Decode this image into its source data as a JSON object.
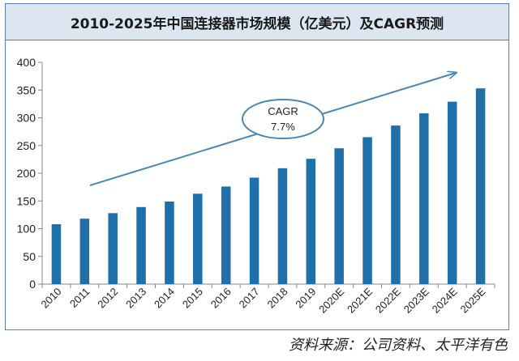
{
  "chart_data": {
    "type": "bar",
    "title": "2010-2025年中国连接器市场规模（亿美元）及CAGR预测",
    "categories": [
      "2010",
      "2011",
      "2012",
      "2013",
      "2014",
      "2015",
      "2016",
      "2017",
      "2018",
      "2019",
      "2020E",
      "2021E",
      "2022E",
      "2023E",
      "2024E",
      "2025E"
    ],
    "values": [
      108,
      118,
      128,
      139,
      149,
      163,
      176,
      192,
      209,
      226,
      245,
      265,
      286,
      308,
      329,
      353
    ],
    "ylim": [
      0,
      400
    ],
    "yticks": [
      0,
      50,
      100,
      150,
      200,
      250,
      300,
      350,
      400
    ],
    "grid": false,
    "bar_color": "#1f6fa8",
    "annotation": {
      "label": "CAGR",
      "value": "7.7%"
    }
  },
  "source_note": "资料来源：公司资料、太平洋有色"
}
